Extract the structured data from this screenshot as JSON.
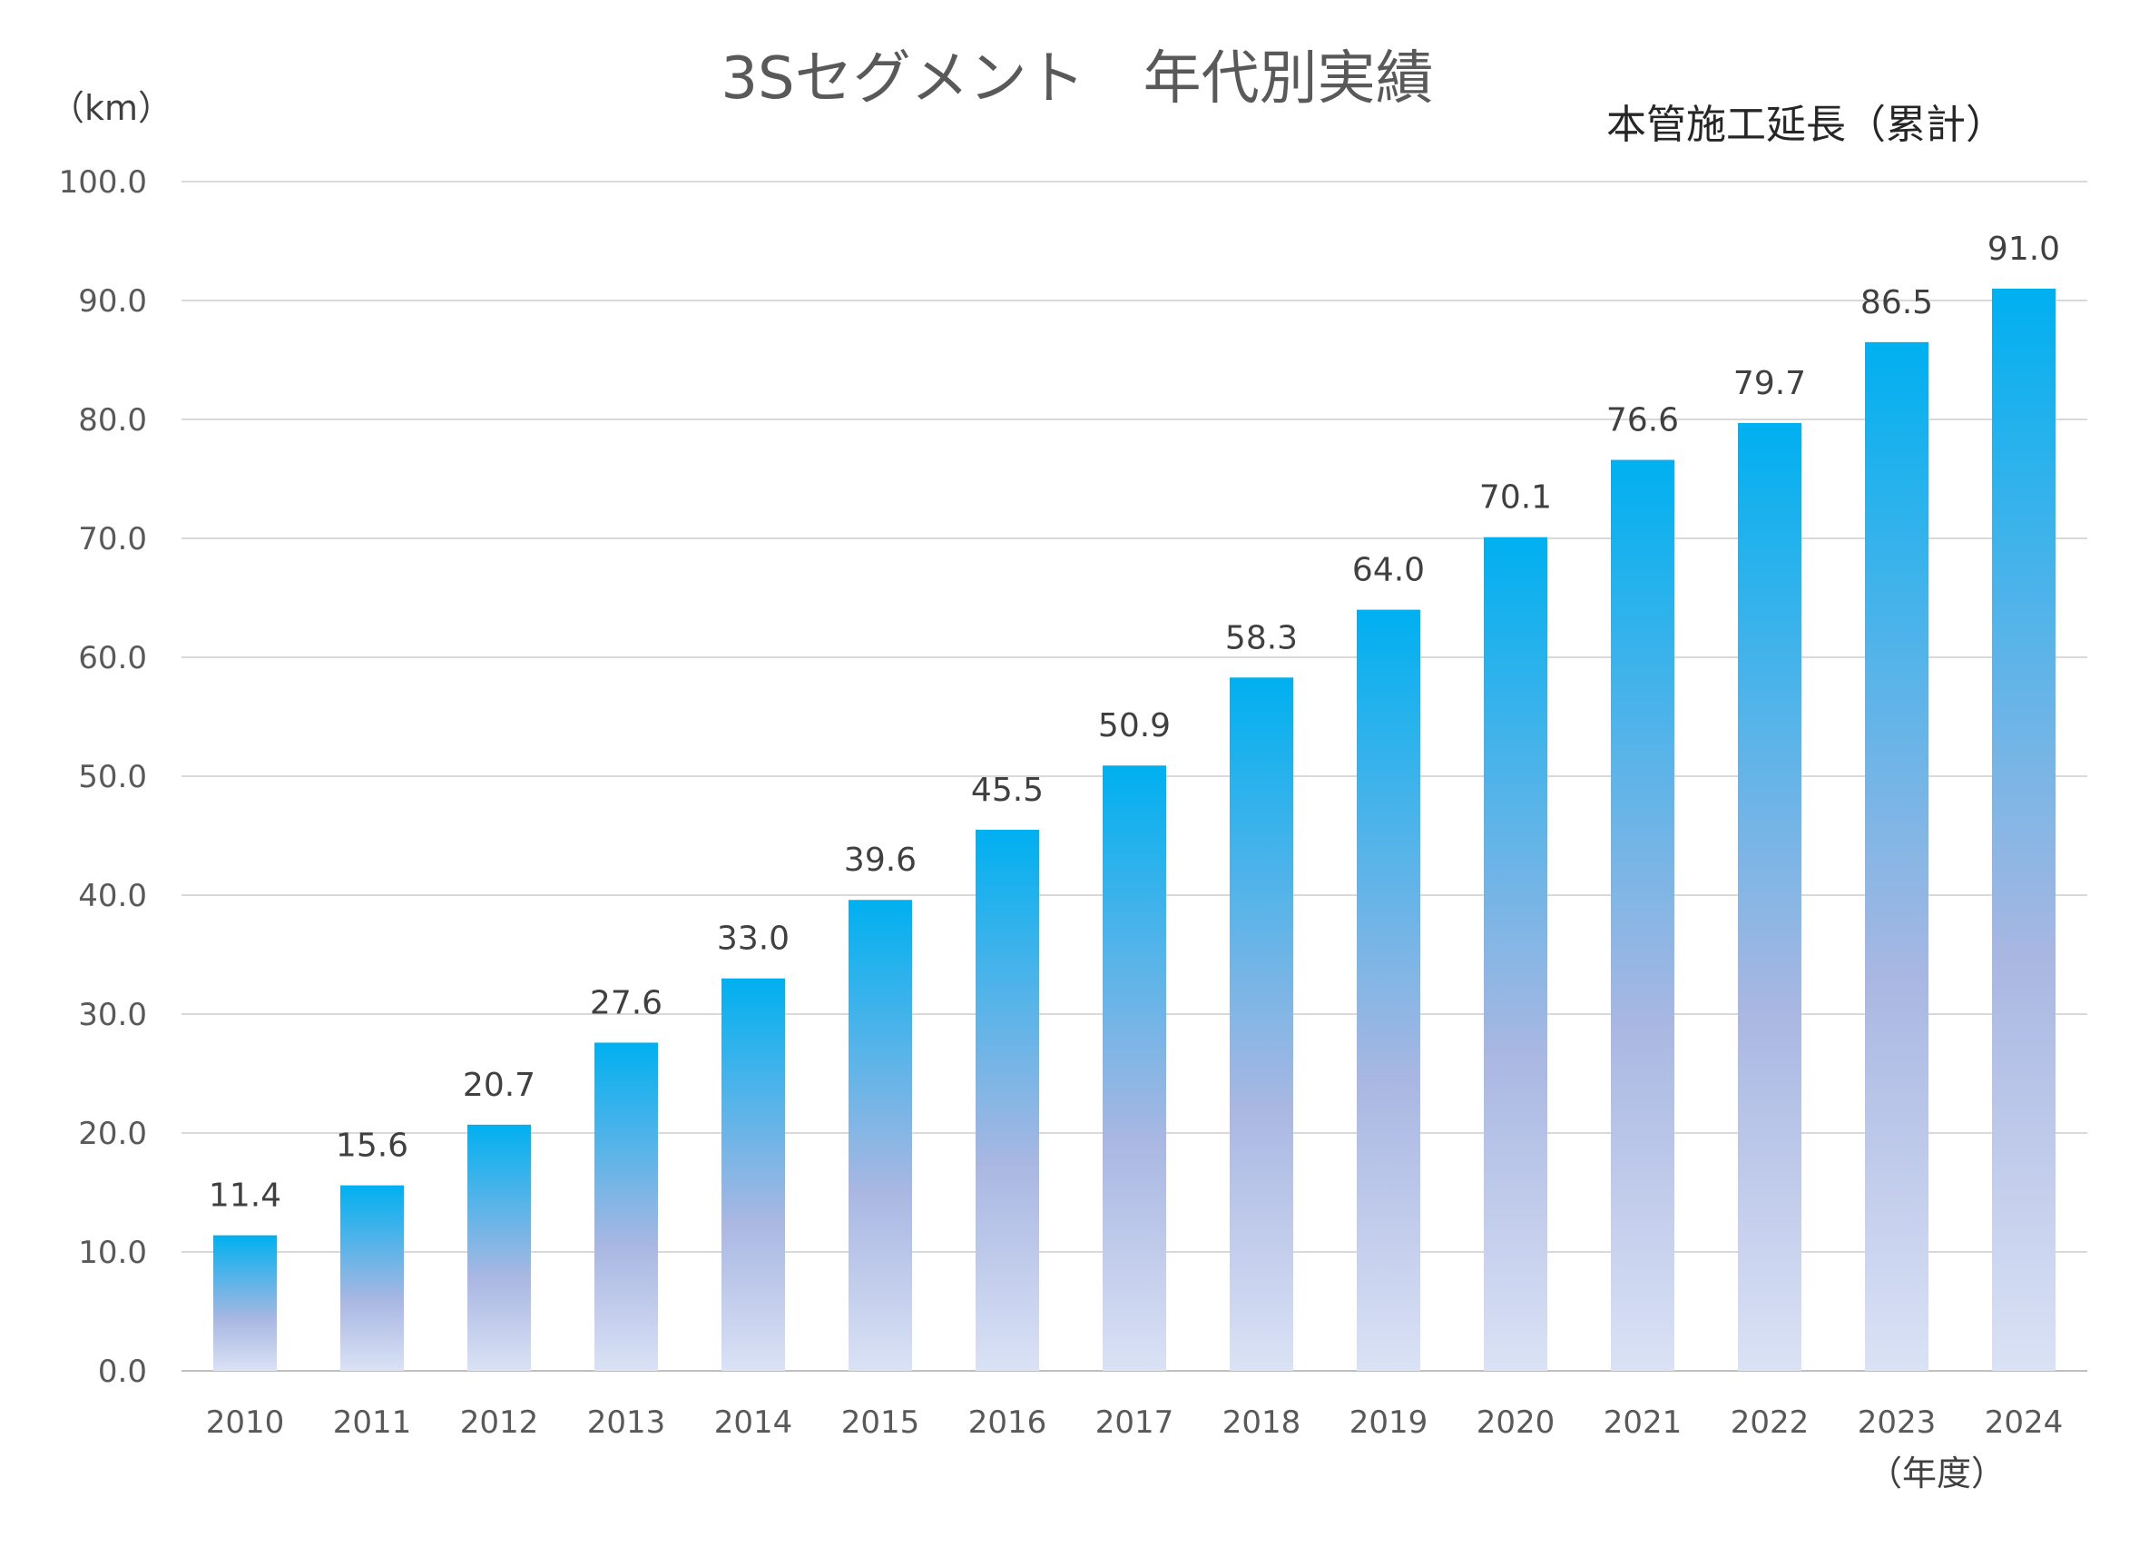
{
  "chart_data": {
    "type": "bar",
    "title": "3Sセグメント　年代別実績",
    "subtitle": "本管施工延長（累計）",
    "ylabel": "（km）",
    "xlabel": "（年度）",
    "ylim": [
      0,
      100
    ],
    "ytick_step": 10,
    "ytick_labels": [
      "0.0",
      "10.0",
      "20.0",
      "30.0",
      "40.0",
      "50.0",
      "60.0",
      "70.0",
      "80.0",
      "90.0",
      "100.0"
    ],
    "categories": [
      "2010",
      "2011",
      "2012",
      "2013",
      "2014",
      "2015",
      "2016",
      "2017",
      "2018",
      "2019",
      "2020",
      "2021",
      "2022",
      "2023",
      "2024"
    ],
    "values": [
      11.4,
      15.6,
      20.7,
      27.6,
      33.0,
      39.6,
      45.5,
      50.9,
      58.3,
      64.0,
      70.1,
      76.6,
      79.7,
      86.5,
      91.0
    ],
    "data_labels": [
      "11.4",
      "15.6",
      "20.7",
      "27.6",
      "33.0",
      "39.6",
      "45.5",
      "50.9",
      "58.3",
      "64.0",
      "70.1",
      "76.6",
      "79.7",
      "86.5",
      "91.0"
    ],
    "grid": true,
    "colors": {
      "bar_top": "#00b0f0",
      "bar_mid": "#a9b7e2",
      "bar_bottom": "#dae2f5",
      "grid": "#d9d9d9"
    }
  }
}
